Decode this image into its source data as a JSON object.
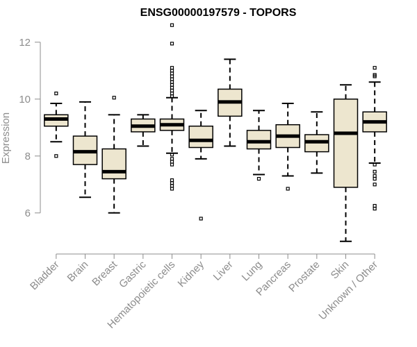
{
  "chart_data": {
    "type": "box",
    "title": "ENSG00000197579 - TOPORS",
    "xlabel": "",
    "ylabel": "Expression",
    "ylim": [
      4.8,
      12.8
    ],
    "yticks": [
      6,
      8,
      10,
      12
    ],
    "box_fill": "#ede6cf",
    "categories": [
      "Bladder",
      "Brain",
      "Breast",
      "Gastric",
      "Hematopoietic cells",
      "Kidney",
      "Liver",
      "Lung",
      "Pancreas",
      "Prostate",
      "Skin",
      "Unknown / Other"
    ],
    "boxes": [
      {
        "whisker_low": 8.5,
        "q1": 9.05,
        "median": 9.3,
        "q3": 9.45,
        "whisker_high": 9.85,
        "outliers": [
          10.2,
          8.0
        ]
      },
      {
        "whisker_low": 6.55,
        "q1": 7.7,
        "median": 8.15,
        "q3": 8.7,
        "whisker_high": 9.9,
        "outliers": []
      },
      {
        "whisker_low": 6.0,
        "q1": 7.2,
        "median": 7.45,
        "q3": 8.25,
        "whisker_high": 9.45,
        "outliers": [
          10.05
        ]
      },
      {
        "whisker_low": 8.35,
        "q1": 8.85,
        "median": 9.05,
        "q3": 9.3,
        "whisker_high": 9.45,
        "outliers": []
      },
      {
        "whisker_low": 8.1,
        "q1": 8.9,
        "median": 9.1,
        "q3": 9.3,
        "whisker_high": 10.05,
        "outliers": [
          12.6,
          11.95,
          11.1,
          11.0,
          10.9,
          10.8,
          10.7,
          10.6,
          10.5,
          10.4,
          10.3,
          10.2,
          10.1,
          8.05,
          7.9,
          7.8,
          7.7,
          7.15,
          7.05,
          6.95,
          6.85
        ]
      },
      {
        "whisker_low": 7.9,
        "q1": 8.3,
        "median": 8.55,
        "q3": 9.05,
        "whisker_high": 9.6,
        "outliers": [
          5.8
        ]
      },
      {
        "whisker_low": 8.35,
        "q1": 9.4,
        "median": 9.9,
        "q3": 10.35,
        "whisker_high": 11.4,
        "outliers": []
      },
      {
        "whisker_low": 7.35,
        "q1": 8.25,
        "median": 8.5,
        "q3": 8.9,
        "whisker_high": 9.6,
        "outliers": [
          7.2
        ]
      },
      {
        "whisker_low": 7.3,
        "q1": 8.3,
        "median": 8.7,
        "q3": 9.1,
        "whisker_high": 9.85,
        "outliers": [
          6.85
        ]
      },
      {
        "whisker_low": 7.4,
        "q1": 8.15,
        "median": 8.5,
        "q3": 8.75,
        "whisker_high": 9.55,
        "outliers": []
      },
      {
        "whisker_low": 5.0,
        "q1": 6.9,
        "median": 8.8,
        "q3": 10.0,
        "whisker_high": 10.5,
        "outliers": []
      },
      {
        "whisker_low": 7.75,
        "q1": 8.85,
        "median": 9.2,
        "q3": 9.55,
        "whisker_high": 10.6,
        "outliers": [
          11.1,
          10.85,
          10.8,
          7.7,
          7.45,
          7.3,
          7.2,
          7.0,
          6.25,
          6.15
        ]
      }
    ]
  }
}
